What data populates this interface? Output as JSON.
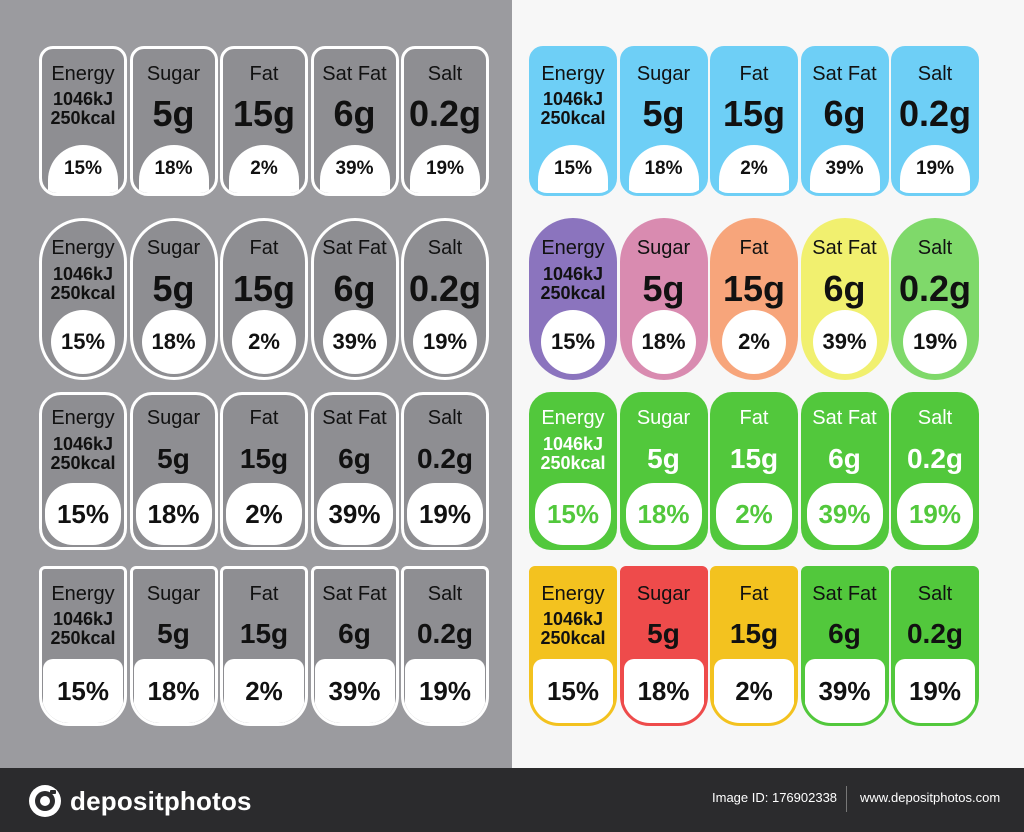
{
  "labels": [
    {
      "name": "Energy",
      "amount_lines": [
        "1046kJ",
        "250kcal"
      ],
      "percent": "15%"
    },
    {
      "name": "Sugar",
      "amount_lines": [
        "5g"
      ],
      "percent": "18%"
    },
    {
      "name": "Fat",
      "amount_lines": [
        "15g"
      ],
      "percent": "2%"
    },
    {
      "name": "Sat Fat",
      "amount_lines": [
        "6g"
      ],
      "percent": "39%"
    },
    {
      "name": "Salt",
      "amount_lines": [
        "0.2g"
      ],
      "percent": "19%"
    }
  ],
  "rows": [
    {
      "style": "tag",
      "theme": "gray",
      "colors": [
        "#8e8e92",
        "#8e8e92",
        "#8e8e92",
        "#8e8e92",
        "#8e8e92"
      ]
    },
    {
      "style": "pill",
      "theme": "gray",
      "colors": [
        "#8e8e92",
        "#8e8e92",
        "#8e8e92",
        "#8e8e92",
        "#8e8e92"
      ]
    },
    {
      "style": "rounded",
      "theme": "gray",
      "colors": [
        "#8e8e92",
        "#8e8e92",
        "#8e8e92",
        "#8e8e92",
        "#8e8e92"
      ]
    },
    {
      "style": "flag",
      "theme": "gray",
      "colors": [
        "#8e8e92",
        "#8e8e92",
        "#8e8e92",
        "#8e8e92",
        "#8e8e92"
      ]
    },
    {
      "style": "tag",
      "theme": "color",
      "colors": [
        "#6ecff6",
        "#6ecff6",
        "#6ecff6",
        "#6ecff6",
        "#6ecff6"
      ]
    },
    {
      "style": "pill",
      "theme": "color",
      "colors": [
        "#8b74be",
        "#d98bb0",
        "#f7a57b",
        "#f1f06f",
        "#7fd96a"
      ]
    },
    {
      "style": "rounded",
      "theme": "color",
      "colors": [
        "#52c83c",
        "#52c83c",
        "#52c83c",
        "#52c83c",
        "#52c83c"
      ]
    },
    {
      "style": "flag",
      "theme": "color",
      "colors": [
        "#f3c21f",
        "#ee4b4b",
        "#f3c21f",
        "#52c83c",
        "#52c83c"
      ]
    }
  ],
  "footer": {
    "brand": "depositphotos",
    "image_id": "Image ID: 176902338",
    "site": "www.depositphotos.com"
  }
}
